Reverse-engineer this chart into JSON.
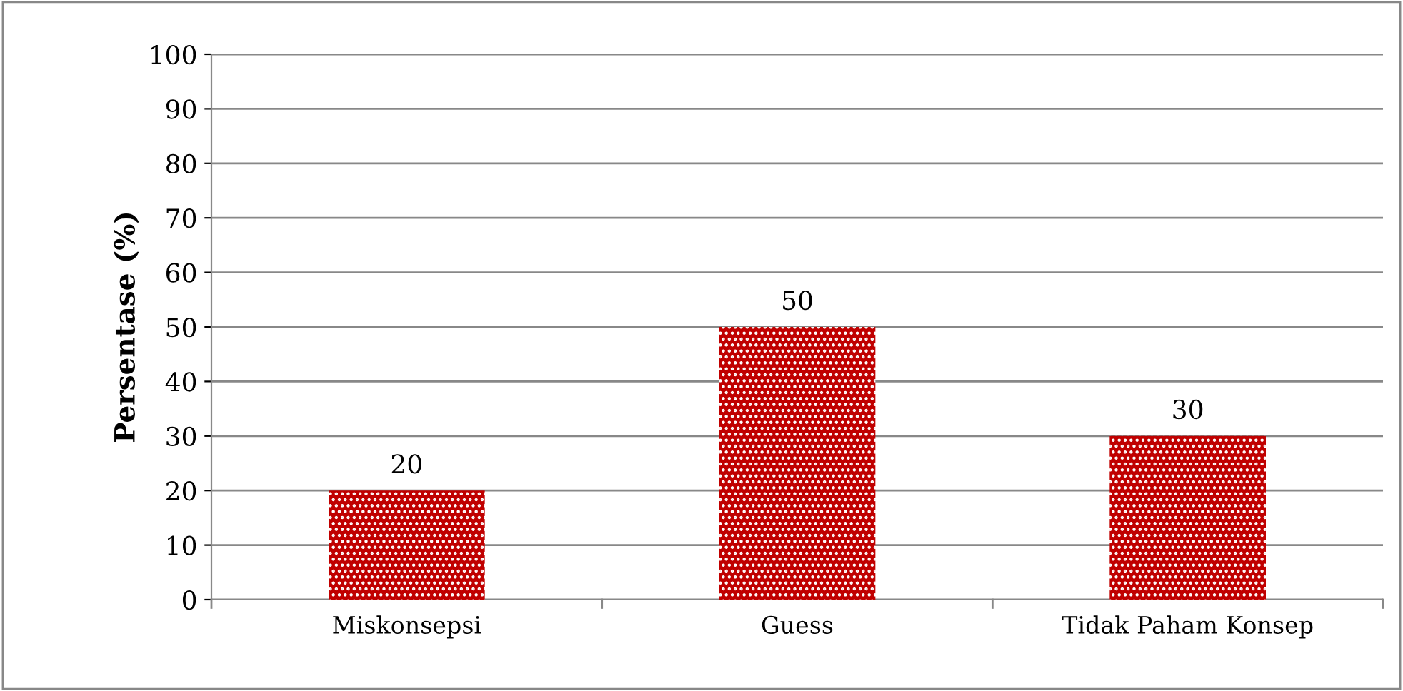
{
  "chart_data": {
    "type": "bar",
    "ylabel": "Persentase (%)",
    "categories": [
      "Miskonsepsi",
      "Guess",
      "Tidak Paham Konsep"
    ],
    "values": [
      20,
      50,
      30
    ],
    "color": "#c00000",
    "ylim": [
      0,
      100
    ],
    "yticks": [
      0,
      10,
      20,
      30,
      40,
      50,
      60,
      70,
      80,
      90,
      100
    ],
    "grid": "y",
    "data_labels": true,
    "legend": false
  }
}
